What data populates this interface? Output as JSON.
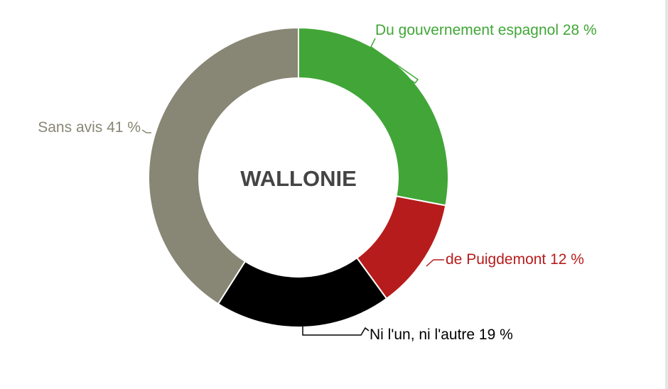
{
  "chart_data": {
    "type": "pie",
    "variant": "donut",
    "title": "WALLONIE",
    "slices": [
      {
        "label": "Du gouvernement espagnol",
        "value": 28,
        "color": "#41a637",
        "label_text": "Du gouvernement espagnol 28 %"
      },
      {
        "label": "de Puigdemont",
        "value": 12,
        "color": "#b71c1c",
        "label_text": "de Puigdemont 12 %"
      },
      {
        "label": "Ni l'un, ni l'autre",
        "value": 19,
        "color": "#000000",
        "label_text": "Ni l'un, ni l'autre 19 %"
      },
      {
        "label": "Sans avis",
        "value": 41,
        "color": "#888674",
        "label_text": "Sans avis 41 %"
      }
    ]
  }
}
